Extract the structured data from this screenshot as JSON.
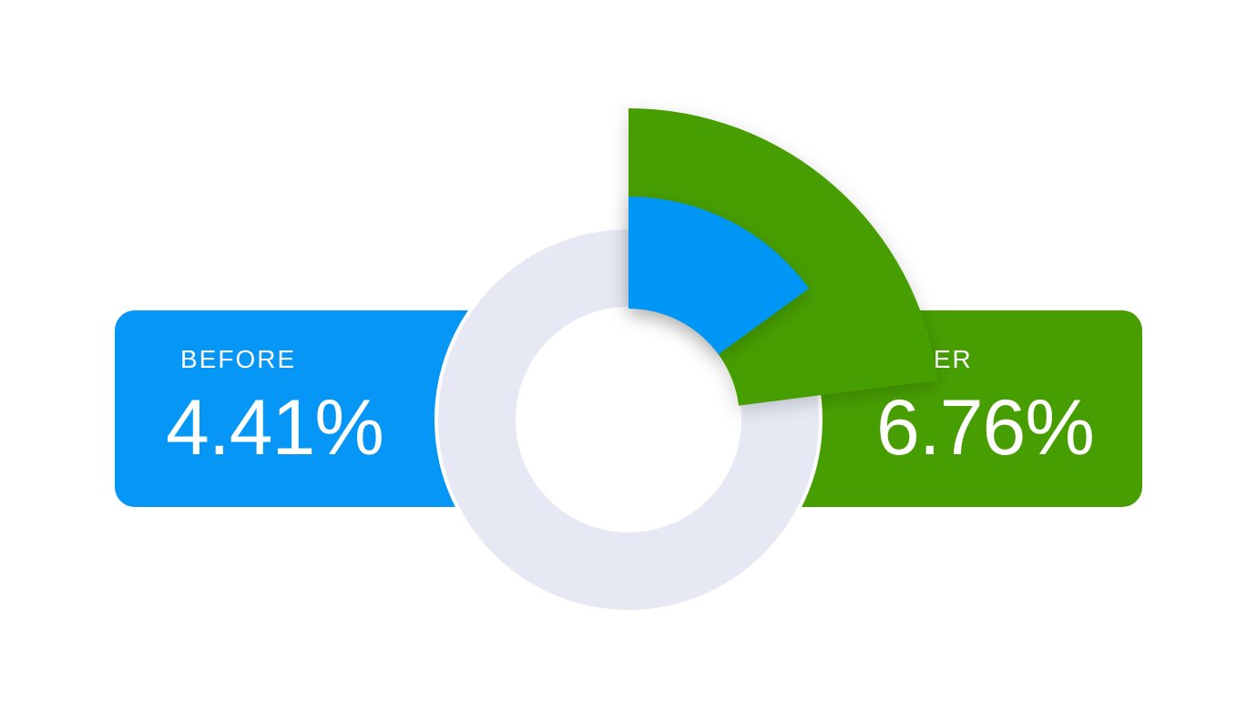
{
  "before": {
    "label": "BEFORE",
    "value": "4.41%"
  },
  "after": {
    "label": "AFTER",
    "value": "6.76%"
  },
  "colors": {
    "before": "#0696F5",
    "after": "#479E01",
    "ring": "#E6E9F4",
    "background": "#FFFFFF"
  },
  "chart_data": {
    "type": "pie",
    "categories": [
      "BEFORE",
      "AFTER"
    ],
    "values": [
      4.41,
      6.76
    ],
    "title": "",
    "xlabel": "",
    "ylabel": ""
  }
}
